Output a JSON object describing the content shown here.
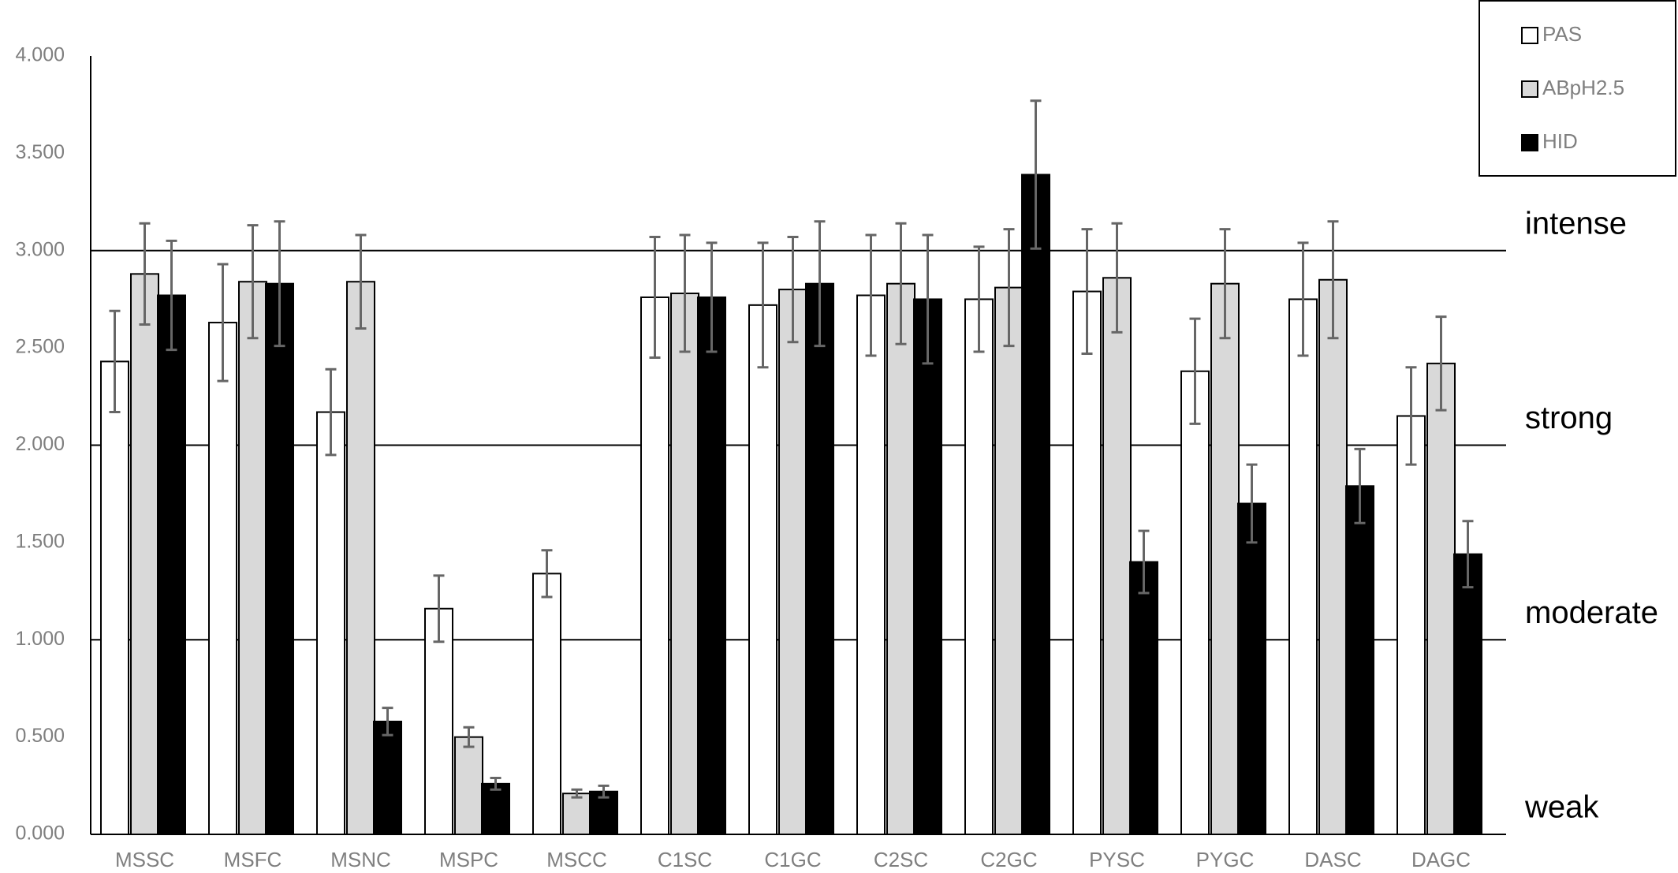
{
  "chart_data": {
    "type": "bar",
    "categories": [
      "MSSC",
      "MSFC",
      "MSNC",
      "MSPC",
      "MSCC",
      "C1SC",
      "C1GC",
      "C2SC",
      "C2GC",
      "PYSC",
      "PYGC",
      "DASC",
      "DAGC"
    ],
    "series": [
      {
        "name": "PAS",
        "color": "#ffffff",
        "values": [
          2.43,
          2.63,
          2.17,
          1.16,
          1.34,
          2.76,
          2.72,
          2.77,
          2.75,
          2.79,
          2.38,
          2.75,
          2.15
        ],
        "errors": [
          0.26,
          0.3,
          0.22,
          0.17,
          0.12,
          0.31,
          0.32,
          0.31,
          0.27,
          0.32,
          0.27,
          0.29,
          0.25
        ]
      },
      {
        "name": "ABpH2.5",
        "color": "#d9d9d9",
        "values": [
          2.88,
          2.84,
          2.84,
          0.5,
          0.21,
          2.78,
          2.8,
          2.83,
          2.81,
          2.86,
          2.83,
          2.85,
          2.42
        ],
        "errors": [
          0.26,
          0.29,
          0.24,
          0.05,
          0.02,
          0.3,
          0.27,
          0.31,
          0.3,
          0.28,
          0.28,
          0.3,
          0.24
        ]
      },
      {
        "name": "HID",
        "color": "#000000",
        "values": [
          2.77,
          2.83,
          0.58,
          0.26,
          0.22,
          2.76,
          2.83,
          2.75,
          3.39,
          1.4,
          1.7,
          1.79,
          1.44
        ],
        "errors": [
          0.28,
          0.32,
          0.07,
          0.03,
          0.03,
          0.28,
          0.32,
          0.33,
          0.38,
          0.16,
          0.2,
          0.19,
          0.17
        ]
      }
    ],
    "ylim": [
      0,
      4
    ],
    "yticks": [
      {
        "value": 0,
        "label": "0.000"
      },
      {
        "value": 0.5,
        "label": "0.500"
      },
      {
        "value": 1,
        "label": "1.000"
      },
      {
        "value": 1.5,
        "label": "1.500"
      },
      {
        "value": 2,
        "label": "2.000"
      },
      {
        "value": 2.5,
        "label": "2.500"
      },
      {
        "value": 3,
        "label": "3.000"
      },
      {
        "value": 3.5,
        "label": "3.500"
      },
      {
        "value": 4,
        "label": "4.000"
      }
    ],
    "thresholds": [
      {
        "value": 0,
        "label": "weak"
      },
      {
        "value": 1,
        "label": "moderate"
      },
      {
        "value": 2,
        "label": "strong"
      },
      {
        "value": 3,
        "label": "intense"
      }
    ],
    "legend": "top-right"
  }
}
